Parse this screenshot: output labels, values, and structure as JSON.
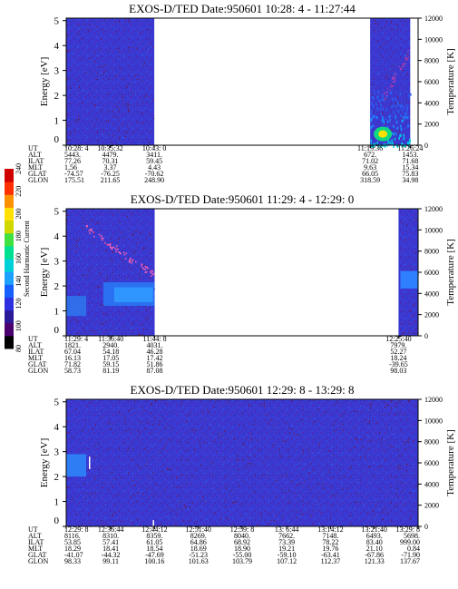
{
  "colors": {
    "background": "#3b3bd6",
    "gap": "#ffffff",
    "colorbar": [
      "#000000",
      "#4b0070",
      "#2a1a9a",
      "#2e30e0",
      "#1560ff",
      "#1ea0ff",
      "#00d0d8",
      "#00e090",
      "#40e040",
      "#d0d800",
      "#ffe000",
      "#ff9000",
      "#ff3000",
      "#d00000"
    ]
  },
  "colorbar": {
    "label": "Second Harmonic Current",
    "ticks": [
      "80",
      "100",
      "120",
      "140",
      "160",
      "180",
      "200",
      "220",
      "240"
    ]
  },
  "chart_data": [
    {
      "type": "heatmap",
      "title": "EXOS-D/TED   Date:950601   10:28: 4 - 11:27:44",
      "ylabel": "Energy [eV]",
      "y2label": "Temperature [K]",
      "ylim": [
        0,
        5.1
      ],
      "y2lim": [
        0,
        12000
      ],
      "yticks": [
        "0",
        "1",
        "2",
        "3",
        "4",
        "5"
      ],
      "y2ticks": [
        "0",
        "2000",
        "4000",
        "6000",
        "8000",
        "10000",
        "12000"
      ],
      "data_intervals": [
        {
          "start": "10:28: 4",
          "end": "10:43: 0"
        },
        {
          "start": "11:19:36",
          "end": "11:26:24"
        }
      ],
      "ephemeris": {
        "row_labels": [
          "UT",
          "ALT",
          "ILAT",
          "MLT",
          "GLAT",
          "GLON"
        ],
        "columns": [
          {
            "values": [
              "10:28: 4",
              "5443.",
              "77.26",
              "1.56",
              "-74.57",
              "175.51"
            ]
          },
          {
            "values": [
              "10:35:32",
              "4479.",
              "70.31",
              "3.37",
              "-76.25",
              "211.65"
            ]
          },
          {
            "values": [
              "10:43: 0",
              "3411.",
              "59.45",
              "4.43",
              "-70.62",
              "248.90"
            ]
          },
          {
            "values": [
              "11:19:36",
              "672.",
              "71.02",
              "9.63",
              "66.05",
              "318.59"
            ]
          },
          {
            "values": [
              "11:26:24",
              "1453.",
              "71.68",
              "15.34",
              "75.83",
              "34.98"
            ]
          }
        ]
      }
    },
    {
      "type": "heatmap",
      "title": "EXOS-D/TED   Date:950601   11:29: 4 - 12:29: 0",
      "ylabel": "Energy [eV]",
      "y2label": "Temperature [K]",
      "ylim": [
        0,
        5.1
      ],
      "y2lim": [
        0,
        12000
      ],
      "yticks": [
        "0",
        "1",
        "2",
        "3",
        "4",
        "5"
      ],
      "y2ticks": [
        "0",
        "2000",
        "4000",
        "6000",
        "8000",
        "10000",
        "12000"
      ],
      "data_intervals": [
        {
          "start": "11:29: 4",
          "end": "11:44: 8"
        },
        {
          "start": "12:25:40",
          "end": "12:29: 0"
        }
      ],
      "ephemeris": {
        "row_labels": [
          "UT",
          "ALT",
          "ILAT",
          "MLT",
          "GLAT",
          "GLON"
        ],
        "columns": [
          {
            "values": [
              "11:29: 4",
              "1821.",
              "67.04",
              "16.13",
              "71.82",
              "58.73"
            ]
          },
          {
            "values": [
              "11:36:40",
              "2940.",
              "54.18",
              "17.05",
              "59.15",
              "81.19"
            ]
          },
          {
            "values": [
              "11:44: 8",
              "4031.",
              "46.28",
              "17.42",
              "51.86",
              "87.08"
            ]
          },
          {
            "values": [
              "12:25:40",
              "7979.",
              "52.27",
              "18.24",
              "-39.65",
              "98.03"
            ]
          }
        ]
      }
    },
    {
      "type": "heatmap",
      "title": "EXOS-D/TED   Date:950601   12:29: 8 - 13:29: 8",
      "ylabel": "Energy [eV]",
      "y2label": "Temperature [K]",
      "ylim": [
        0,
        5.1
      ],
      "y2lim": [
        0,
        12000
      ],
      "yticks": [
        "0",
        "1",
        "2",
        "3",
        "4",
        "5"
      ],
      "y2ticks": [
        "0",
        "2000",
        "4000",
        "6000",
        "8000",
        "10000",
        "12000"
      ],
      "data_intervals": [
        {
          "start": "12:29: 8",
          "end": "13:29: 8"
        }
      ],
      "ephemeris": {
        "row_labels": [
          "UT",
          "ALT",
          "ILAT",
          "MLT",
          "GLAT",
          "GLON"
        ],
        "columns": [
          {
            "values": [
              "12:29: 8",
              "8116.",
              "53.85",
              "18.29",
              "-41.07",
              "98.33"
            ]
          },
          {
            "values": [
              "12:36:44",
              "8310.",
              "57.41",
              "18.41",
              "-44.32",
              "99.11"
            ]
          },
          {
            "values": [
              "12:44:12",
              "8359.",
              "61.05",
              "18.54",
              "-47.69",
              "100.16"
            ]
          },
          {
            "values": [
              "12:51:40",
              "8269.",
              "64.86",
              "18.69",
              "-51.23",
              "101.63"
            ]
          },
          {
            "values": [
              "12:59: 8",
              "8040.",
              "68.92",
              "18.90",
              "-55.00",
              "103.79"
            ]
          },
          {
            "values": [
              "13: 6:44",
              "7662.",
              "73.39",
              "19.21",
              "-59.10",
              "107.12"
            ]
          },
          {
            "values": [
              "13:14:12",
              "7148.",
              "78.22",
              "19.76",
              "-63.41",
              "112.37"
            ]
          },
          {
            "values": [
              "13:21:40",
              "6493.",
              "83.40",
              "21.10",
              "-67.86",
              "121.33"
            ]
          },
          {
            "values": [
              "13:29: 8",
              "5698.",
              "999.00",
              "0.84",
              "-71.90",
              "137.67"
            ]
          }
        ]
      }
    }
  ]
}
